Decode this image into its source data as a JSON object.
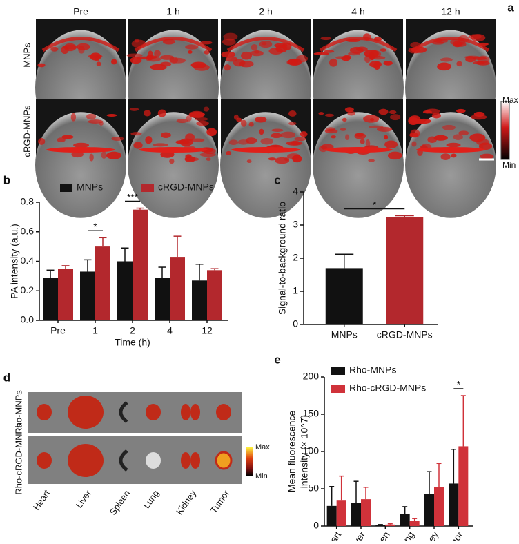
{
  "figure": {
    "panel_labels": [
      "a",
      "b",
      "c",
      "d",
      "e"
    ],
    "panel_a": {
      "columns": [
        "Pre",
        "1 h",
        "2 h",
        "4 h",
        "12 h"
      ],
      "rows": [
        "MNPs",
        "cRGD-MNPs"
      ],
      "colorbar": [
        "Max",
        "Min"
      ]
    },
    "panel_d": {
      "rows": [
        "Rho-MNPs",
        "Rho-cRGD-MNPs"
      ],
      "organs": [
        "Heart",
        "Liver",
        "Spleen",
        "Lung",
        "Kidney",
        "Tumor"
      ],
      "colorbar": [
        "Max",
        "Min"
      ]
    }
  },
  "chart_data": [
    {
      "type": "bar",
      "ylabel": [
        "PA intensity (a.u.)"
      ],
      "xlabel": "Time (h)",
      "categories": [
        "Pre",
        "1",
        "2",
        "4",
        "12"
      ],
      "series": [
        {
          "name": "MNPs",
          "color": "#111111",
          "values": [
            0.29,
            0.33,
            0.4,
            0.29,
            0.27
          ],
          "errors": [
            0.05,
            0.08,
            0.09,
            0.07,
            0.11
          ]
        },
        {
          "name": "cRGD-MNPs",
          "color": "#b3282d",
          "values": [
            0.35,
            0.5,
            0.75,
            0.43,
            0.34
          ],
          "errors": [
            0.02,
            0.06,
            0.01,
            0.14,
            0.01
          ]
        }
      ],
      "ylim": [
        0,
        0.8
      ],
      "yticks": [
        {
          "value": 0,
          "label": "0.0"
        },
        0.2,
        0.4,
        0.6,
        0.8
      ],
      "annotations": [
        "*",
        "***"
      ],
      "legend": "top"
    },
    {
      "type": "bar",
      "ylabel": [
        "Signal-to-background ratio"
      ],
      "categories": [
        "MNPs",
        "cRGD-MNPs"
      ],
      "series": [
        {
          "colors": [
            "#111111",
            "#b3282d"
          ],
          "values": [
            1.7,
            3.23
          ],
          "errors": [
            0.42,
            0.05
          ]
        }
      ],
      "ylim": [
        0,
        4
      ],
      "yticks": [
        0,
        1,
        2,
        3,
        4
      ],
      "annotations": [
        "*"
      ]
    },
    {
      "type": "bar",
      "ylabel": [
        "Mean fluorescence",
        "intensity (× 10^7)"
      ],
      "categories": [
        "Heart",
        "Liver",
        "Spleen",
        "Lung",
        "Kidney",
        "Tumor"
      ],
      "series": [
        {
          "name": "Rho-MNPs",
          "color": "#111111",
          "values": [
            27,
            31,
            1,
            16,
            43,
            57
          ],
          "errors": [
            26,
            29,
            1,
            10,
            30,
            46
          ]
        },
        {
          "name": "Rho-cRGD-MNPs",
          "color": "#d0323a",
          "values": [
            35,
            36,
            2,
            7,
            52,
            107
          ],
          "errors": [
            32,
            16,
            1,
            3,
            32,
            68
          ]
        }
      ],
      "ylim": [
        0,
        200
      ],
      "yticks": [
        0,
        50,
        100,
        150,
        200
      ],
      "annotations": [
        "*"
      ],
      "legend": "top-left"
    }
  ]
}
